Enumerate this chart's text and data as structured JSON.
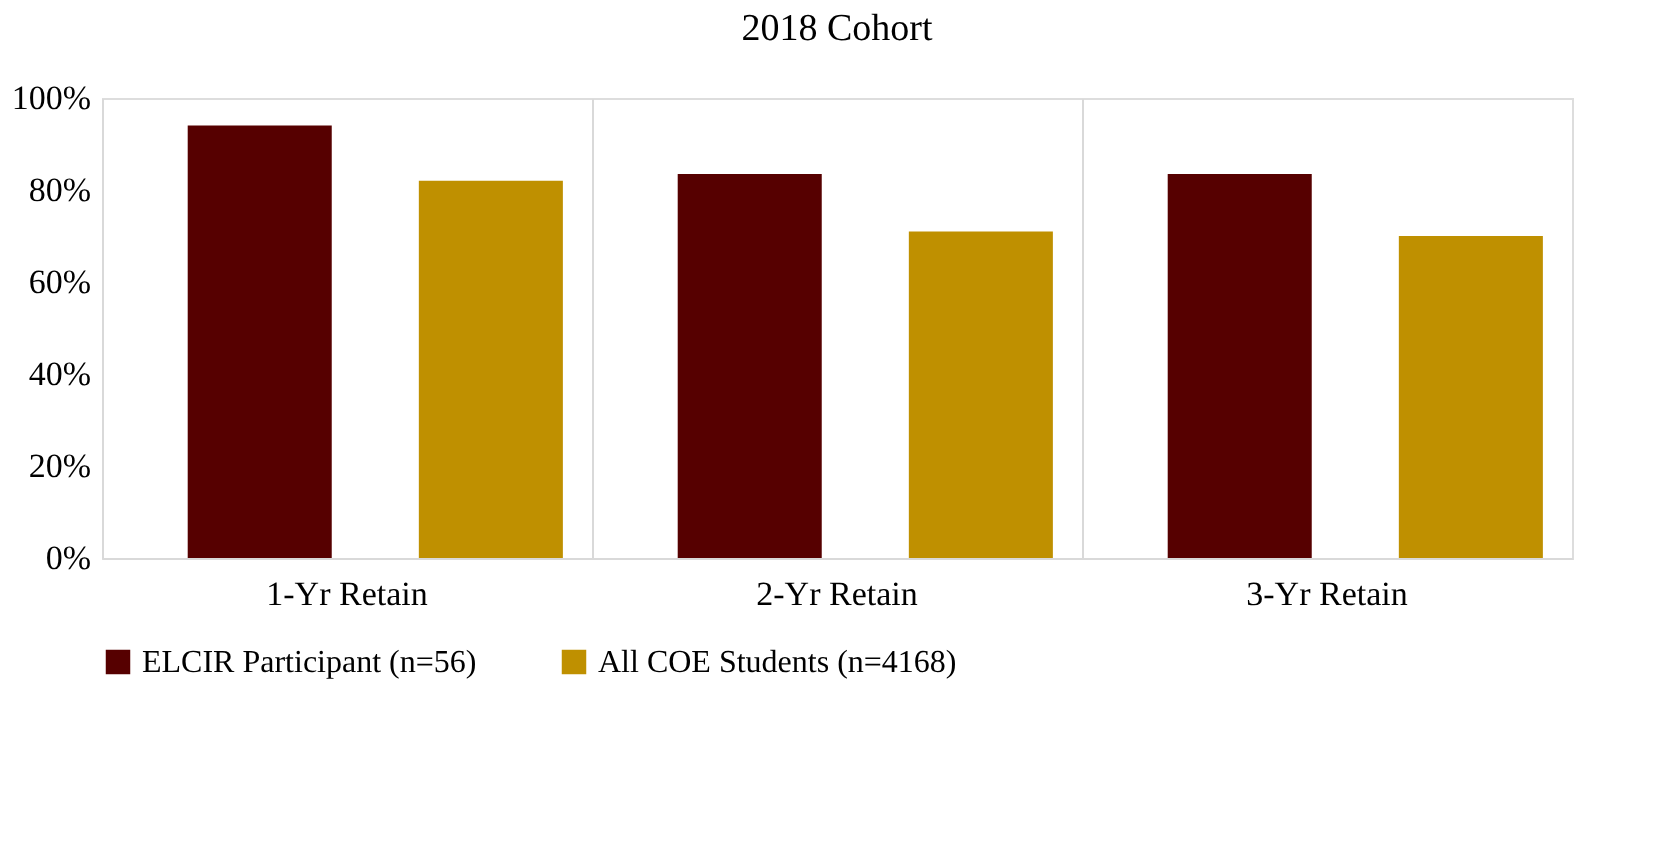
{
  "chart_data": {
    "type": "bar",
    "title": "2018 Cohort",
    "categories": [
      "1-Yr Retain",
      "2-Yr Retain",
      "3-Yr Retain"
    ],
    "series": [
      {
        "name": "ELCIR Participant (n=56)",
        "color": "#560000",
        "values": [
          94,
          83.5,
          83.5
        ]
      },
      {
        "name": "All COE Students (n=4168)",
        "color": "#bf9000",
        "values": [
          82,
          71,
          70
        ]
      }
    ],
    "ylim": [
      0,
      100
    ],
    "yticks": [
      {
        "value": 0,
        "label": "0%"
      },
      {
        "value": 20,
        "label": "20%"
      },
      {
        "value": 40,
        "label": "40%"
      },
      {
        "value": 60,
        "label": "60%"
      },
      {
        "value": 80,
        "label": "80%"
      },
      {
        "value": 100,
        "label": "100%"
      }
    ],
    "grid": "x",
    "legend": "bottom"
  }
}
